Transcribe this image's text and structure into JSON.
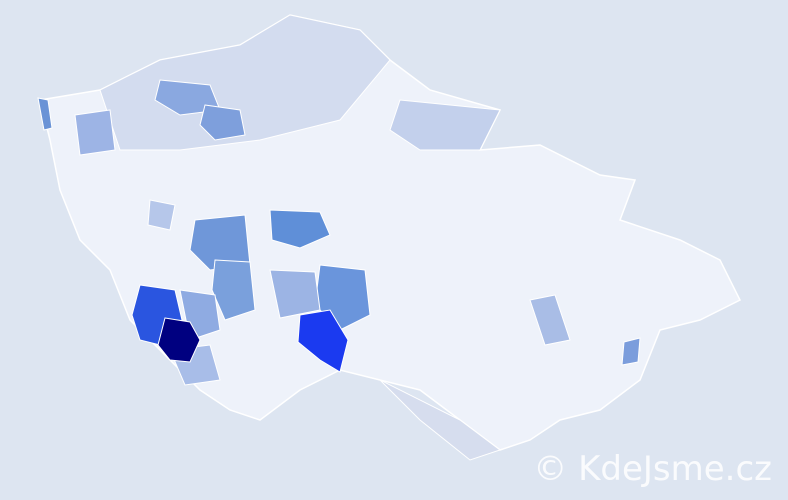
{
  "watermark": "© KdeJsme.cz"
}
